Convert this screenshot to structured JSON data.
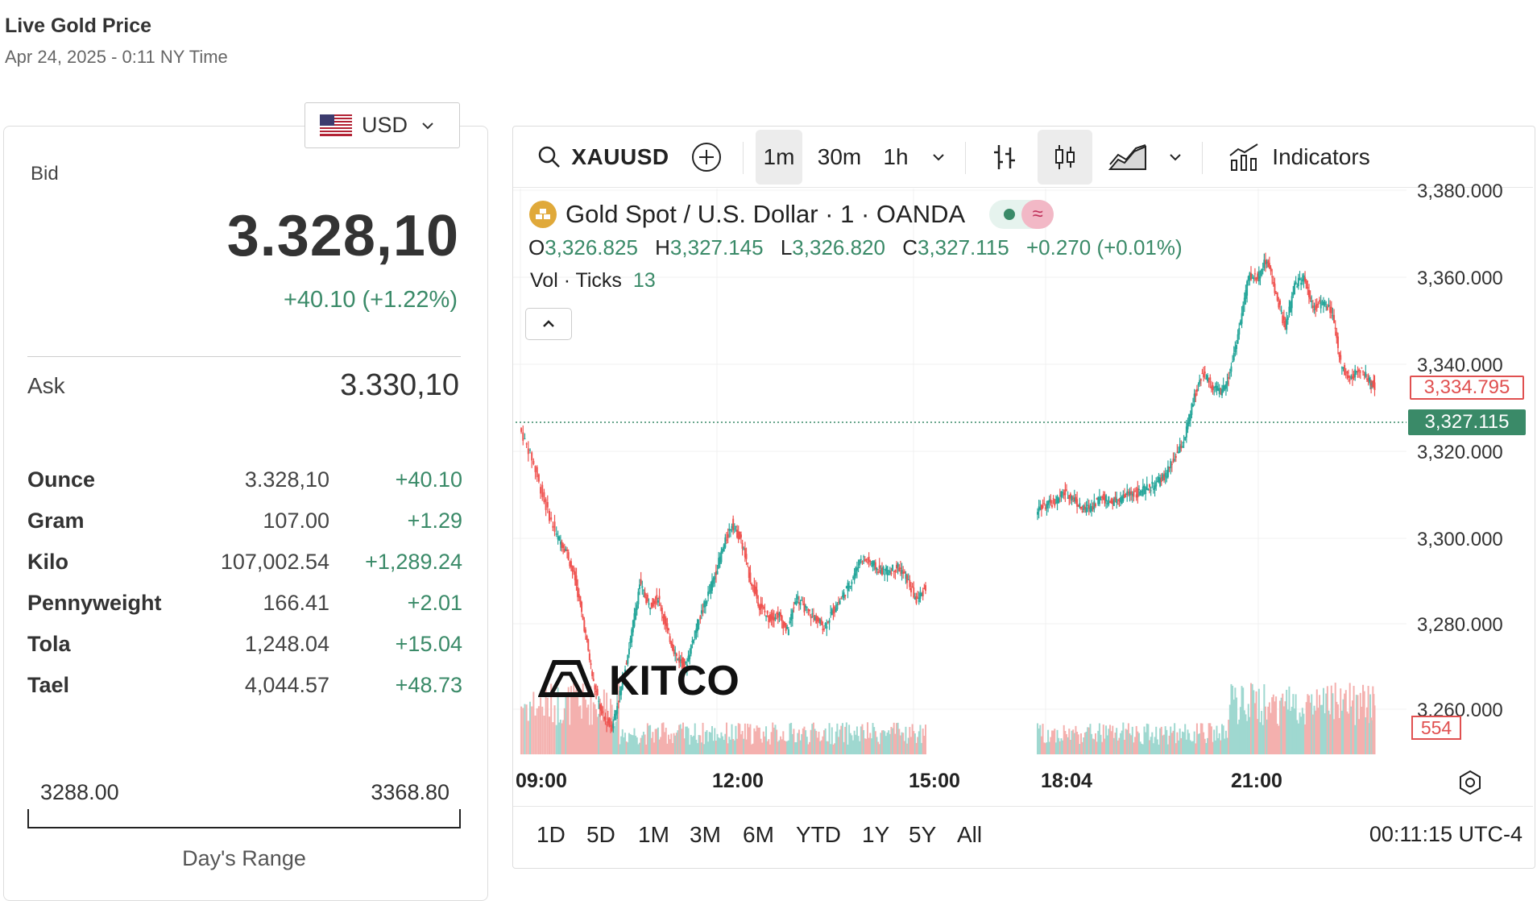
{
  "header": {
    "title": "Live Gold Price",
    "datetime": "Apr 24, 2025 - 0:11 NY Time"
  },
  "currency": {
    "label": "USD",
    "flag_icon": "us-flag-icon"
  },
  "quote": {
    "bid_label": "Bid",
    "bid_value": "3.328,10",
    "bid_change": "+40.10 (+1.22%)",
    "ask_label": "Ask",
    "ask_value": "3.330,10"
  },
  "units": [
    {
      "name": "Ounce",
      "price": "3.328,10",
      "change": "+40.10"
    },
    {
      "name": "Gram",
      "price": "107.00",
      "change": "+1.29"
    },
    {
      "name": "Kilo",
      "price": "107,002.54",
      "change": "+1,289.24"
    },
    {
      "name": "Pennyweight",
      "price": "166.41",
      "change": "+2.01"
    },
    {
      "name": "Tola",
      "price": "1,248.04",
      "change": "+15.04"
    },
    {
      "name": "Tael",
      "price": "4,044.57",
      "change": "+48.73"
    }
  ],
  "day_range": {
    "low": "3288.00",
    "high": "3368.80",
    "caption": "Day's Range"
  },
  "toolbar": {
    "symbol": "XAUUSD",
    "intervals": [
      "1m",
      "30m",
      "1h"
    ],
    "active_interval": "1m",
    "indicators_label": "Indicators"
  },
  "legend": {
    "title": "Gold Spot / U.S. Dollar · 1 · OANDA",
    "o_key": "O",
    "o_val": "3,326.825",
    "h_key": "H",
    "h_val": "3,327.145",
    "l_key": "L",
    "l_val": "3,326.820",
    "c_key": "C",
    "c_val": "3,327.115",
    "change": "+0.270 (+0.01%)",
    "vol_label": "Vol · Ticks",
    "vol_value": "13",
    "wave_symbol": "≈"
  },
  "logo_text": "KITCO",
  "price_tags": {
    "close": "3,327.115",
    "mark": "3,334.795",
    "volume": "554"
  },
  "range_buttons": [
    "1D",
    "5D",
    "1M",
    "3M",
    "6M",
    "YTD",
    "1Y",
    "5Y",
    "All"
  ],
  "clock": "00:11:15 UTC-4",
  "colors": {
    "up": "#26a69a",
    "down": "#ef5350",
    "accent_green": "#3a8a68",
    "grid": "#f0f0f0"
  },
  "chart_data": {
    "type": "line",
    "title": "Gold Spot / U.S. Dollar · 1 · OANDA",
    "xlabel": "",
    "ylabel": "",
    "x_ticks": [
      "09:00",
      "12:00",
      "15:00",
      "18:04",
      "21:00"
    ],
    "y_ticks": [
      "3,380.000",
      "3,360.000",
      "3,340.000",
      "3,320.000",
      "3,300.000",
      "3,280.000",
      "3,260.000"
    ],
    "ylim": [
      3252,
      3380
    ],
    "grid": true,
    "series": [
      {
        "values": [
          [
            0,
            3325
          ],
          [
            0.2,
            3318
          ],
          [
            0.4,
            3308
          ],
          [
            0.6,
            3300
          ],
          [
            0.75,
            3297
          ],
          [
            0.9,
            3290
          ],
          [
            1.05,
            3279
          ],
          [
            1.2,
            3266
          ],
          [
            1.35,
            3258
          ],
          [
            1.5,
            3256
          ],
          [
            1.65,
            3265
          ],
          [
            1.8,
            3276
          ],
          [
            1.95,
            3289
          ],
          [
            2.1,
            3284
          ],
          [
            2.25,
            3286
          ],
          [
            2.4,
            3278
          ],
          [
            2.55,
            3272
          ],
          [
            2.7,
            3270
          ],
          [
            2.85,
            3278
          ],
          [
            3.0,
            3284
          ],
          [
            3.15,
            3290
          ],
          [
            3.3,
            3297
          ],
          [
            3.45,
            3303
          ],
          [
            3.6,
            3299
          ],
          [
            3.75,
            3290
          ],
          [
            3.9,
            3284
          ],
          [
            4.05,
            3281
          ],
          [
            4.2,
            3282
          ],
          [
            4.35,
            3278
          ],
          [
            4.5,
            3286
          ],
          [
            4.65,
            3283
          ],
          [
            4.8,
            3281
          ],
          [
            4.95,
            3279
          ],
          [
            5.1,
            3283
          ],
          [
            5.25,
            3286
          ],
          [
            5.4,
            3290
          ],
          [
            5.55,
            3295
          ],
          [
            5.7,
            3294
          ],
          [
            5.85,
            3292
          ],
          [
            6.0,
            3292
          ],
          [
            6.15,
            3293
          ],
          [
            6.3,
            3290
          ],
          [
            6.45,
            3285
          ],
          [
            6.6,
            3288
          ],
          [
            8.4,
            3306
          ],
          [
            8.55,
            3307
          ],
          [
            8.7,
            3308
          ],
          [
            8.85,
            3310
          ],
          [
            9.0,
            3309
          ],
          [
            9.15,
            3306
          ],
          [
            9.3,
            3307
          ],
          [
            9.45,
            3309
          ],
          [
            9.6,
            3308
          ],
          [
            9.75,
            3308
          ],
          [
            9.9,
            3310
          ],
          [
            10.05,
            3310
          ],
          [
            10.2,
            3311
          ],
          [
            10.35,
            3312
          ],
          [
            10.5,
            3314
          ],
          [
            10.65,
            3318
          ],
          [
            10.8,
            3322
          ],
          [
            10.95,
            3331
          ],
          [
            11.1,
            3338
          ],
          [
            11.25,
            3335
          ],
          [
            11.4,
            3333
          ],
          [
            11.55,
            3338
          ],
          [
            11.7,
            3348
          ],
          [
            11.85,
            3360
          ],
          [
            12.0,
            3360
          ],
          [
            12.15,
            3364
          ],
          [
            12.3,
            3356
          ],
          [
            12.45,
            3348
          ],
          [
            12.6,
            3358
          ],
          [
            12.75,
            3360
          ],
          [
            12.9,
            3353
          ],
          [
            13.05,
            3354
          ],
          [
            13.2,
            3352
          ],
          [
            13.35,
            3340
          ],
          [
            13.5,
            3336
          ],
          [
            13.65,
            3339
          ],
          [
            13.8,
            3336
          ],
          [
            13.9,
            3334.8
          ]
        ]
      }
    ],
    "volume": {
      "last": 554
    }
  }
}
